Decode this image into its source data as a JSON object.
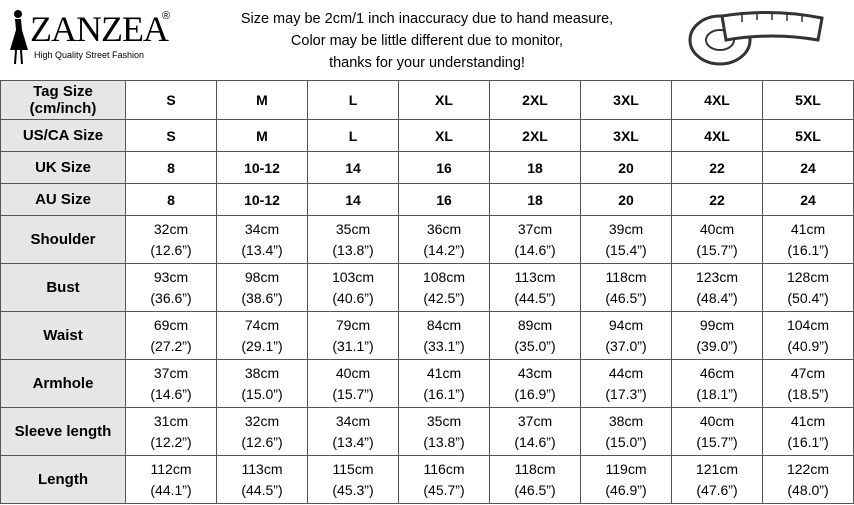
{
  "brand": {
    "name": "ZANZEA",
    "mark": "®",
    "tagline": "High Quality Street Fashion"
  },
  "notes": [
    "Size may be 2cm/1 inch inaccuracy due to hand measure,",
    "Color may be little different due to monitor,",
    "thanks for your understanding!"
  ],
  "table": {
    "size_rows": [
      {
        "label": "Tag Size (cm/inch)",
        "cells": [
          "S",
          "M",
          "L",
          "XL",
          "2XL",
          "3XL",
          "4XL",
          "5XL"
        ]
      },
      {
        "label": "US/CA Size",
        "cells": [
          "S",
          "M",
          "L",
          "XL",
          "2XL",
          "3XL",
          "4XL",
          "5XL"
        ]
      },
      {
        "label": "UK Size",
        "cells": [
          "8",
          "10-12",
          "14",
          "16",
          "18",
          "20",
          "22",
          "24"
        ]
      },
      {
        "label": "AU Size",
        "cells": [
          "8",
          "10-12",
          "14",
          "16",
          "18",
          "20",
          "22",
          "24"
        ]
      }
    ],
    "measure_rows": [
      {
        "label": "Shoulder",
        "cells": [
          [
            "32cm",
            "(12.6”)"
          ],
          [
            "34cm",
            "(13.4”)"
          ],
          [
            "35cm",
            "(13.8”)"
          ],
          [
            "36cm",
            "(14.2”)"
          ],
          [
            "37cm",
            "(14.6”)"
          ],
          [
            "39cm",
            "(15.4”)"
          ],
          [
            "40cm",
            "(15.7”)"
          ],
          [
            "41cm",
            "(16.1”)"
          ]
        ]
      },
      {
        "label": "Bust",
        "cells": [
          [
            "93cm",
            "(36.6”)"
          ],
          [
            "98cm",
            "(38.6”)"
          ],
          [
            "103cm",
            "(40.6”)"
          ],
          [
            "108cm",
            "(42.5”)"
          ],
          [
            "113cm",
            "(44.5”)"
          ],
          [
            "118cm",
            "(46.5”)"
          ],
          [
            "123cm",
            "(48.4”)"
          ],
          [
            "128cm",
            "(50.4”)"
          ]
        ]
      },
      {
        "label": "Waist",
        "cells": [
          [
            "69cm",
            "(27.2”)"
          ],
          [
            "74cm",
            "(29.1”)"
          ],
          [
            "79cm",
            "(31.1”)"
          ],
          [
            "84cm",
            "(33.1”)"
          ],
          [
            "89cm",
            "(35.0”)"
          ],
          [
            "94cm",
            "(37.0”)"
          ],
          [
            "99cm",
            "(39.0”)"
          ],
          [
            "104cm",
            "(40.9”)"
          ]
        ]
      },
      {
        "label": "Armhole",
        "cells": [
          [
            "37cm",
            "(14.6”)"
          ],
          [
            "38cm",
            "(15.0”)"
          ],
          [
            "40cm",
            "(15.7”)"
          ],
          [
            "41cm",
            "(16.1”)"
          ],
          [
            "43cm",
            "(16.9”)"
          ],
          [
            "44cm",
            "(17.3”)"
          ],
          [
            "46cm",
            "(18.1”)"
          ],
          [
            "47cm",
            "(18.5”)"
          ]
        ]
      },
      {
        "label": "Sleeve length",
        "cells": [
          [
            "31cm",
            "(12.2”)"
          ],
          [
            "32cm",
            "(12.6”)"
          ],
          [
            "34cm",
            "(13.4”)"
          ],
          [
            "35cm",
            "(13.8”)"
          ],
          [
            "37cm",
            "(14.6”)"
          ],
          [
            "38cm",
            "(15.0”)"
          ],
          [
            "40cm",
            "(15.7”)"
          ],
          [
            "41cm",
            "(16.1”)"
          ]
        ]
      },
      {
        "label": "Length",
        "cells": [
          [
            "112cm",
            "(44.1”)"
          ],
          [
            "113cm",
            "(44.5”)"
          ],
          [
            "115cm",
            "(45.3”)"
          ],
          [
            "116cm",
            "(45.7”)"
          ],
          [
            "118cm",
            "(46.5”)"
          ],
          [
            "119cm",
            "(46.9”)"
          ],
          [
            "121cm",
            "(47.6”)"
          ],
          [
            "122cm",
            "(48.0”)"
          ]
        ]
      }
    ]
  }
}
